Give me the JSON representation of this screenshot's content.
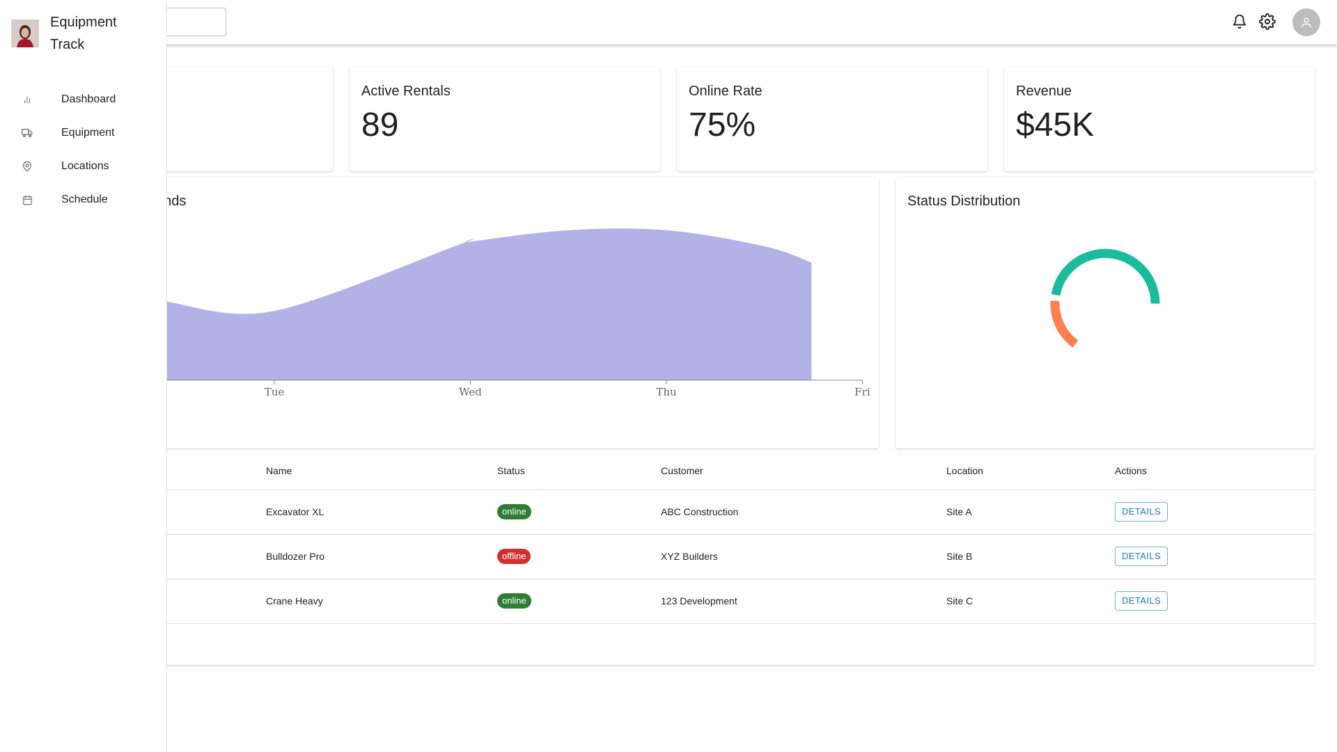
{
  "app": {
    "name": "Equipment Track"
  },
  "search": {
    "placeholder": "",
    "value": ""
  },
  "header": {
    "icons": [
      "bell-icon",
      "gear-icon",
      "user-avatar-icon"
    ]
  },
  "sidebar": {
    "items": [
      {
        "label": "Dashboard",
        "icon": "bar-chart-icon"
      },
      {
        "label": "Equipment",
        "icon": "truck-icon"
      },
      {
        "label": "Locations",
        "icon": "map-pin-icon"
      },
      {
        "label": "Schedule",
        "icon": "calendar-icon"
      }
    ]
  },
  "stats": [
    {
      "label": "Active Rentals",
      "value": "89"
    },
    {
      "label": "Online Rate",
      "value": "75%"
    },
    {
      "label": "Revenue",
      "value": "$45K"
    }
  ],
  "trend_panel": {
    "title_fragment": "ends"
  },
  "distribution_panel": {
    "title": "Status Distribution"
  },
  "chart_data": [
    {
      "type": "area",
      "x": [
        "Tue",
        "Wed",
        "Thu",
        "Fri"
      ],
      "ticks": [
        "Tue",
        "Wed",
        "Thu",
        "Fri"
      ],
      "series": [
        {
          "values": [
            {
              "x": 0.9,
              "y": 3.4
            },
            {
              "x": 1.0,
              "y": 3.0
            },
            {
              "x": 1.95,
              "y": 5.9
            },
            {
              "x": 2.0,
              "y": 6.0
            },
            {
              "x": 2.5,
              "y": 6.5
            },
            {
              "x": 3.0,
              "y": 6.5
            },
            {
              "x": 3.5,
              "y": 5.8
            },
            {
              "x": 3.74,
              "y": 5.1
            }
          ]
        }
      ],
      "color": "#b3b2e6",
      "ylim": [
        0,
        7
      ]
    },
    {
      "type": "pie",
      "segments": [
        {
          "value": 75,
          "color": "#1abc9c"
        },
        {
          "value": 25,
          "color": "#ff7f50"
        }
      ]
    }
  ],
  "table": {
    "headers": [
      "Name",
      "Status",
      "Customer",
      "Location",
      "Actions"
    ],
    "rows": [
      {
        "name": "Excavator XL",
        "status": "online",
        "customer": "ABC Construction",
        "location": "Site A",
        "action": "DETAILS"
      },
      {
        "name": "Bulldozer Pro",
        "status": "offline",
        "customer": "XYZ Builders",
        "location": "Site B",
        "action": "DETAILS"
      },
      {
        "name": "Crane Heavy",
        "status": "online",
        "customer": "123 Development",
        "location": "Site C",
        "action": "DETAILS"
      }
    ]
  },
  "colors": {
    "online": "#2e7d32",
    "offline": "#d32f2f",
    "accent": "#1976d2"
  }
}
